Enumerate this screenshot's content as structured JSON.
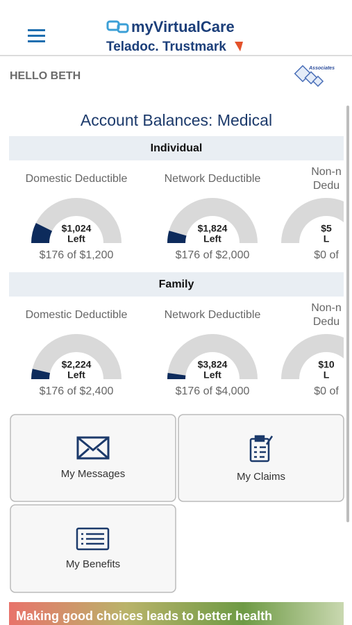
{
  "header": {
    "brand": "myVirtualCare",
    "partner": "Teladoc. Trustmark",
    "greeting": "HELLO BETH",
    "employer_logo": "Associates"
  },
  "balances": {
    "title": "Account Balances: Medical",
    "groups": [
      {
        "name": "Individual",
        "gauges": [
          {
            "title_lines": [
              "Domestic Deductible"
            ],
            "left_amount": "$1,024",
            "left_word": "Left",
            "summary": "$176 of $1,200",
            "used": 176,
            "total": 1200
          },
          {
            "title_lines": [
              "Network Deductible"
            ],
            "left_amount": "$1,824",
            "left_word": "Left",
            "summary": "$176 of $2,000",
            "used": 176,
            "total": 2000
          },
          {
            "title_lines": [
              "Non-n",
              "Dedu"
            ],
            "left_amount": "$5",
            "left_word": "L",
            "summary": "$0 of",
            "used": 0
          }
        ]
      },
      {
        "name": "Family",
        "gauges": [
          {
            "title_lines": [
              "Domestic Deductible"
            ],
            "left_amount": "$2,224",
            "left_word": "Left",
            "summary": "$176 of $2,400",
            "used": 176,
            "total": 2400
          },
          {
            "title_lines": [
              "Network Deductible"
            ],
            "left_amount": "$3,824",
            "left_word": "Left",
            "summary": "$176 of $4,000",
            "used": 176,
            "total": 4000
          },
          {
            "title_lines": [
              "Non-n",
              "Dedu"
            ],
            "left_amount": "$10",
            "left_word": "L",
            "summary": "$0 of",
            "used": 0
          }
        ]
      }
    ]
  },
  "tiles": [
    "My Messages",
    "My Claims",
    "My Benefits"
  ],
  "banner": "Making good choices leads to better health"
}
